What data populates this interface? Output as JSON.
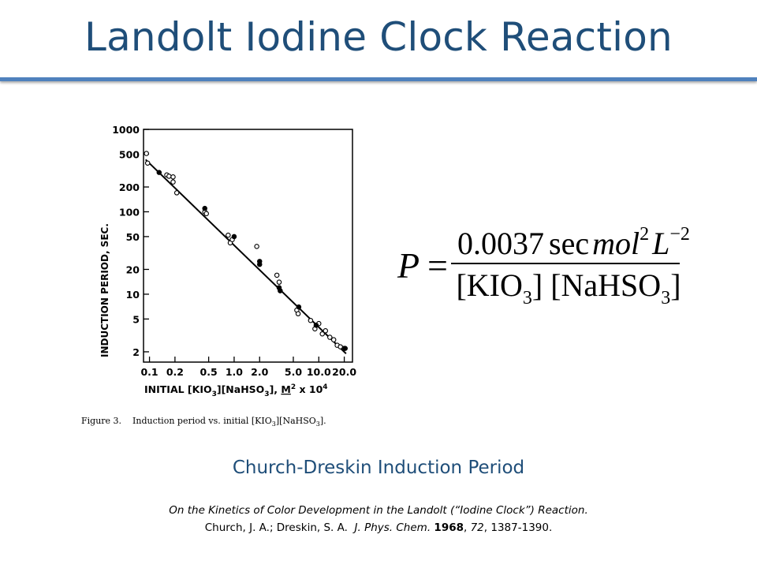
{
  "slide": {
    "title": "Landolt Iodine Clock Reaction",
    "caption": "Church-Dreskin Induction Period",
    "reference_title": "On the Kinetics of Color Development in the Landolt (“Iodine Clock”) Reaction.",
    "reference_authors": "Church, J. A.; Dreskin, S. A.",
    "reference_journal": "J. Phys. Chem.",
    "reference_year": "1968",
    "reference_volume": "72",
    "reference_pages": "1387-1390."
  },
  "equation": {
    "lhs": "P",
    "equals": "=",
    "num_value": "0.0037",
    "num_unit_sec": "sec",
    "num_unit_mol": "mol",
    "num_exp_mol": "2",
    "num_unit_L": "L",
    "num_exp_L": "−2",
    "den_kio": "[KIO",
    "den_kio_sub": "3",
    "den_mid": "] [NaHSO",
    "den_nahso_sub": "3",
    "den_close": "]"
  },
  "chart_data": {
    "type": "scatter",
    "x_scale": "log",
    "y_scale": "log",
    "xlim": [
      0.085,
      25
    ],
    "ylim": [
      1.5,
      1000
    ],
    "xlabel_prefix": "INITIAL  [KIO",
    "xlabel_sub1": "3",
    "xlabel_mid": "][NaHSO",
    "xlabel_sub2": "3",
    "xlabel_mid2": "], ",
    "xlabel_unit": "M",
    "xlabel_unit_exp": "2",
    "xlabel_suffix": " x 10",
    "xlabel_suffix_exp": "4",
    "ylabel": "INDUCTION  PERIOD,  SEC.",
    "x_ticks": [
      0.1,
      0.2,
      0.5,
      1.0,
      2.0,
      5.0,
      10.0,
      20.0
    ],
    "x_tick_labels": [
      "0.1",
      "0.2",
      "0.5",
      "1.0",
      "2.0",
      "5.0",
      "10.0",
      "20.0"
    ],
    "y_ticks": [
      2,
      5,
      10,
      20,
      50,
      100,
      200,
      500,
      1000
    ],
    "y_tick_labels": [
      "2",
      "5",
      "10",
      "20",
      "50",
      "100",
      "200",
      "500",
      "1000"
    ],
    "grid": false,
    "legend": "none",
    "fit_line": {
      "x": [
        0.09,
        21
      ],
      "y": [
        430,
        1.9
      ]
    },
    "series": [
      {
        "marker": "open",
        "points": [
          [
            0.092,
            510
          ],
          [
            0.095,
            390
          ],
          [
            0.16,
            280
          ],
          [
            0.17,
            270
          ],
          [
            0.19,
            265
          ],
          [
            0.19,
            230
          ],
          [
            0.21,
            170
          ],
          [
            0.45,
            100
          ],
          [
            0.47,
            95
          ],
          [
            0.85,
            52
          ],
          [
            0.9,
            42
          ],
          [
            0.95,
            46
          ],
          [
            1.85,
            38
          ],
          [
            3.2,
            17
          ],
          [
            3.4,
            14
          ],
          [
            5.5,
            6.4
          ],
          [
            5.7,
            5.8
          ],
          [
            8.0,
            4.8
          ],
          [
            9.0,
            3.8
          ],
          [
            10.0,
            4.4
          ],
          [
            11.0,
            3.3
          ],
          [
            12.0,
            3.6
          ],
          [
            13.5,
            3.0
          ],
          [
            15.0,
            2.8
          ],
          [
            16.5,
            2.4
          ],
          [
            18.0,
            2.3
          ],
          [
            20.0,
            2.2
          ]
        ]
      },
      {
        "marker": "filled",
        "points": [
          [
            0.13,
            300
          ],
          [
            0.45,
            110
          ],
          [
            1.0,
            50
          ],
          [
            2.0,
            23
          ],
          [
            2.0,
            25
          ],
          [
            3.4,
            12
          ],
          [
            3.5,
            11
          ],
          [
            5.8,
            7
          ],
          [
            9.3,
            4.2
          ],
          [
            20.5,
            2.2
          ]
        ]
      }
    ]
  },
  "figure": {
    "label": "Figure 3.",
    "text": "Induction period vs. initial [KIO",
    "sub1": "3",
    "mid": "][NaHSO",
    "sub2": "3",
    "end": "]."
  }
}
